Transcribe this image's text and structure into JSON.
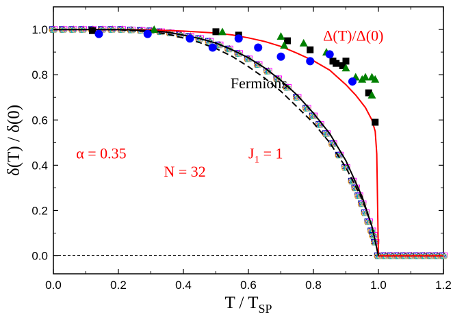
{
  "chart_data": {
    "type": "scatter",
    "xlabel": "T / T",
    "xlabel_sub": "SP",
    "ylabel": "δ(T) / δ(0)",
    "xlim": [
      0.0,
      1.2
    ],
    "ylim": [
      -0.08,
      1.1
    ],
    "xticks": [
      "0.0",
      "0.2",
      "0.4",
      "0.6",
      "0.8",
      "1.0",
      "1.2"
    ],
    "yticks": [
      "0.0",
      "0.2",
      "0.4",
      "0.6",
      "0.8",
      "1.0"
    ],
    "grid": false,
    "annotations": [
      {
        "text": "Δ(T)/Δ(0)",
        "color": "#ff0000",
        "x": 0.83,
        "y": 0.95
      },
      {
        "text": "Fermions",
        "color": "#000000",
        "x": 0.545,
        "y": 0.74
      },
      {
        "text": "α = 0.35",
        "color": "#ff0000",
        "x": 0.07,
        "y": 0.43
      },
      {
        "text": "J",
        "sub": "1",
        "suffix": " = 1",
        "color": "#ff0000",
        "x": 0.6,
        "y": 0.43
      },
      {
        "text": "N = 32",
        "color": "#ff0000",
        "x": 0.34,
        "y": 0.35
      }
    ],
    "series": [
      {
        "kind": "line",
        "style": "solid",
        "color": "#ff0000",
        "x": [
          0,
          0.1,
          0.2,
          0.3,
          0.4,
          0.5,
          0.55,
          0.6,
          0.65,
          0.7,
          0.75,
          0.8,
          0.85,
          0.9,
          0.93,
          0.96,
          0.98,
          0.99,
          0.995,
          1.0,
          1.2
        ],
        "y": [
          1.0,
          1.0,
          1.0,
          0.998,
          0.993,
          0.984,
          0.976,
          0.963,
          0.947,
          0.925,
          0.895,
          0.862,
          0.82,
          0.756,
          0.71,
          0.655,
          0.6,
          0.55,
          0.45,
          0.0,
          0.0
        ]
      },
      {
        "kind": "line",
        "style": "dashed",
        "color": "#000000",
        "x": [
          0,
          0.1,
          0.2,
          0.3,
          0.35,
          0.4,
          0.45,
          0.5,
          0.55,
          0.6,
          0.65,
          0.7,
          0.75,
          0.8,
          0.85,
          0.9,
          0.95,
          0.98,
          1.0
        ],
        "y": [
          1.0,
          1.0,
          0.999,
          0.99,
          0.98,
          0.962,
          0.942,
          0.916,
          0.881,
          0.836,
          0.785,
          0.727,
          0.657,
          0.587,
          0.5,
          0.39,
          0.25,
          0.13,
          0.0
        ]
      },
      {
        "kind": "line",
        "style": "solid",
        "color": "#000000",
        "x": [
          0,
          0.1,
          0.2,
          0.3,
          0.35,
          0.4,
          0.45,
          0.5,
          0.55,
          0.6,
          0.65,
          0.7,
          0.75,
          0.8,
          0.85,
          0.9,
          0.95,
          0.98,
          1.0
        ],
        "y": [
          1.0,
          1.0,
          1.0,
          0.995,
          0.988,
          0.975,
          0.96,
          0.94,
          0.91,
          0.875,
          0.83,
          0.775,
          0.71,
          0.63,
          0.54,
          0.42,
          0.26,
          0.13,
          0.0
        ]
      },
      {
        "kind": "markers",
        "marker": "cluster",
        "colors": [
          "#000080",
          "#0000ff",
          "#008000",
          "#ff00ff",
          "#ffa500",
          "#808080",
          "#00bcbc",
          "#d2b48c"
        ],
        "x": [
          0.0,
          0.03,
          0.06,
          0.09,
          0.12,
          0.15,
          0.18,
          0.21,
          0.24,
          0.27,
          0.3,
          0.33,
          0.36,
          0.39,
          0.42,
          0.45,
          0.48,
          0.51,
          0.54,
          0.57,
          0.6,
          0.63,
          0.66,
          0.69,
          0.72,
          0.75,
          0.78,
          0.8,
          0.82,
          0.84,
          0.86,
          0.88,
          0.9,
          0.92,
          0.93,
          0.94,
          0.95,
          0.96,
          0.97,
          0.98,
          0.985,
          0.99,
          1.0,
          1.02,
          1.04,
          1.06,
          1.08,
          1.1,
          1.12,
          1.14,
          1.16,
          1.18,
          1.2
        ],
        "y": [
          1.0,
          1.0,
          1.0,
          1.0,
          1.0,
          1.0,
          1.0,
          1.0,
          0.998,
          0.996,
          0.994,
          0.99,
          0.985,
          0.978,
          0.97,
          0.96,
          0.948,
          0.932,
          0.914,
          0.894,
          0.87,
          0.845,
          0.816,
          0.782,
          0.744,
          0.7,
          0.652,
          0.618,
          0.58,
          0.54,
          0.495,
          0.445,
          0.39,
          0.33,
          0.3,
          0.265,
          0.23,
          0.19,
          0.15,
          0.11,
          0.09,
          0.06,
          0.0,
          0.0,
          0.0,
          0.0,
          0.0,
          0.0,
          0.0,
          0.0,
          0.0,
          0.0,
          0.0
        ]
      },
      {
        "kind": "markers",
        "marker": "square",
        "color": "#000000",
        "x": [
          0.12,
          0.5,
          0.57,
          0.72,
          0.79,
          0.86,
          0.87,
          0.89,
          0.9,
          0.97,
          0.99
        ],
        "y": [
          0.995,
          0.99,
          0.975,
          0.95,
          0.91,
          0.86,
          0.85,
          0.84,
          0.86,
          0.72,
          0.59
        ]
      },
      {
        "kind": "markers",
        "marker": "triangle",
        "color": "#008000",
        "x": [
          0.31,
          0.52,
          0.7,
          0.71,
          0.77,
          0.84,
          0.9,
          0.93,
          0.95,
          0.96,
          0.98,
          0.99,
          0.98
        ],
        "y": [
          1.0,
          0.99,
          0.97,
          0.93,
          0.94,
          0.9,
          0.83,
          0.79,
          0.78,
          0.79,
          0.79,
          0.78,
          0.71
        ]
      },
      {
        "kind": "markers",
        "marker": "circle",
        "color": "#0000ff",
        "x": [
          0.14,
          0.29,
          0.42,
          0.49,
          0.57,
          0.63,
          0.7,
          0.79,
          0.85,
          0.92
        ],
        "y": [
          0.98,
          0.98,
          0.96,
          0.92,
          0.96,
          0.92,
          0.88,
          0.86,
          0.89,
          0.77
        ]
      }
    ]
  }
}
